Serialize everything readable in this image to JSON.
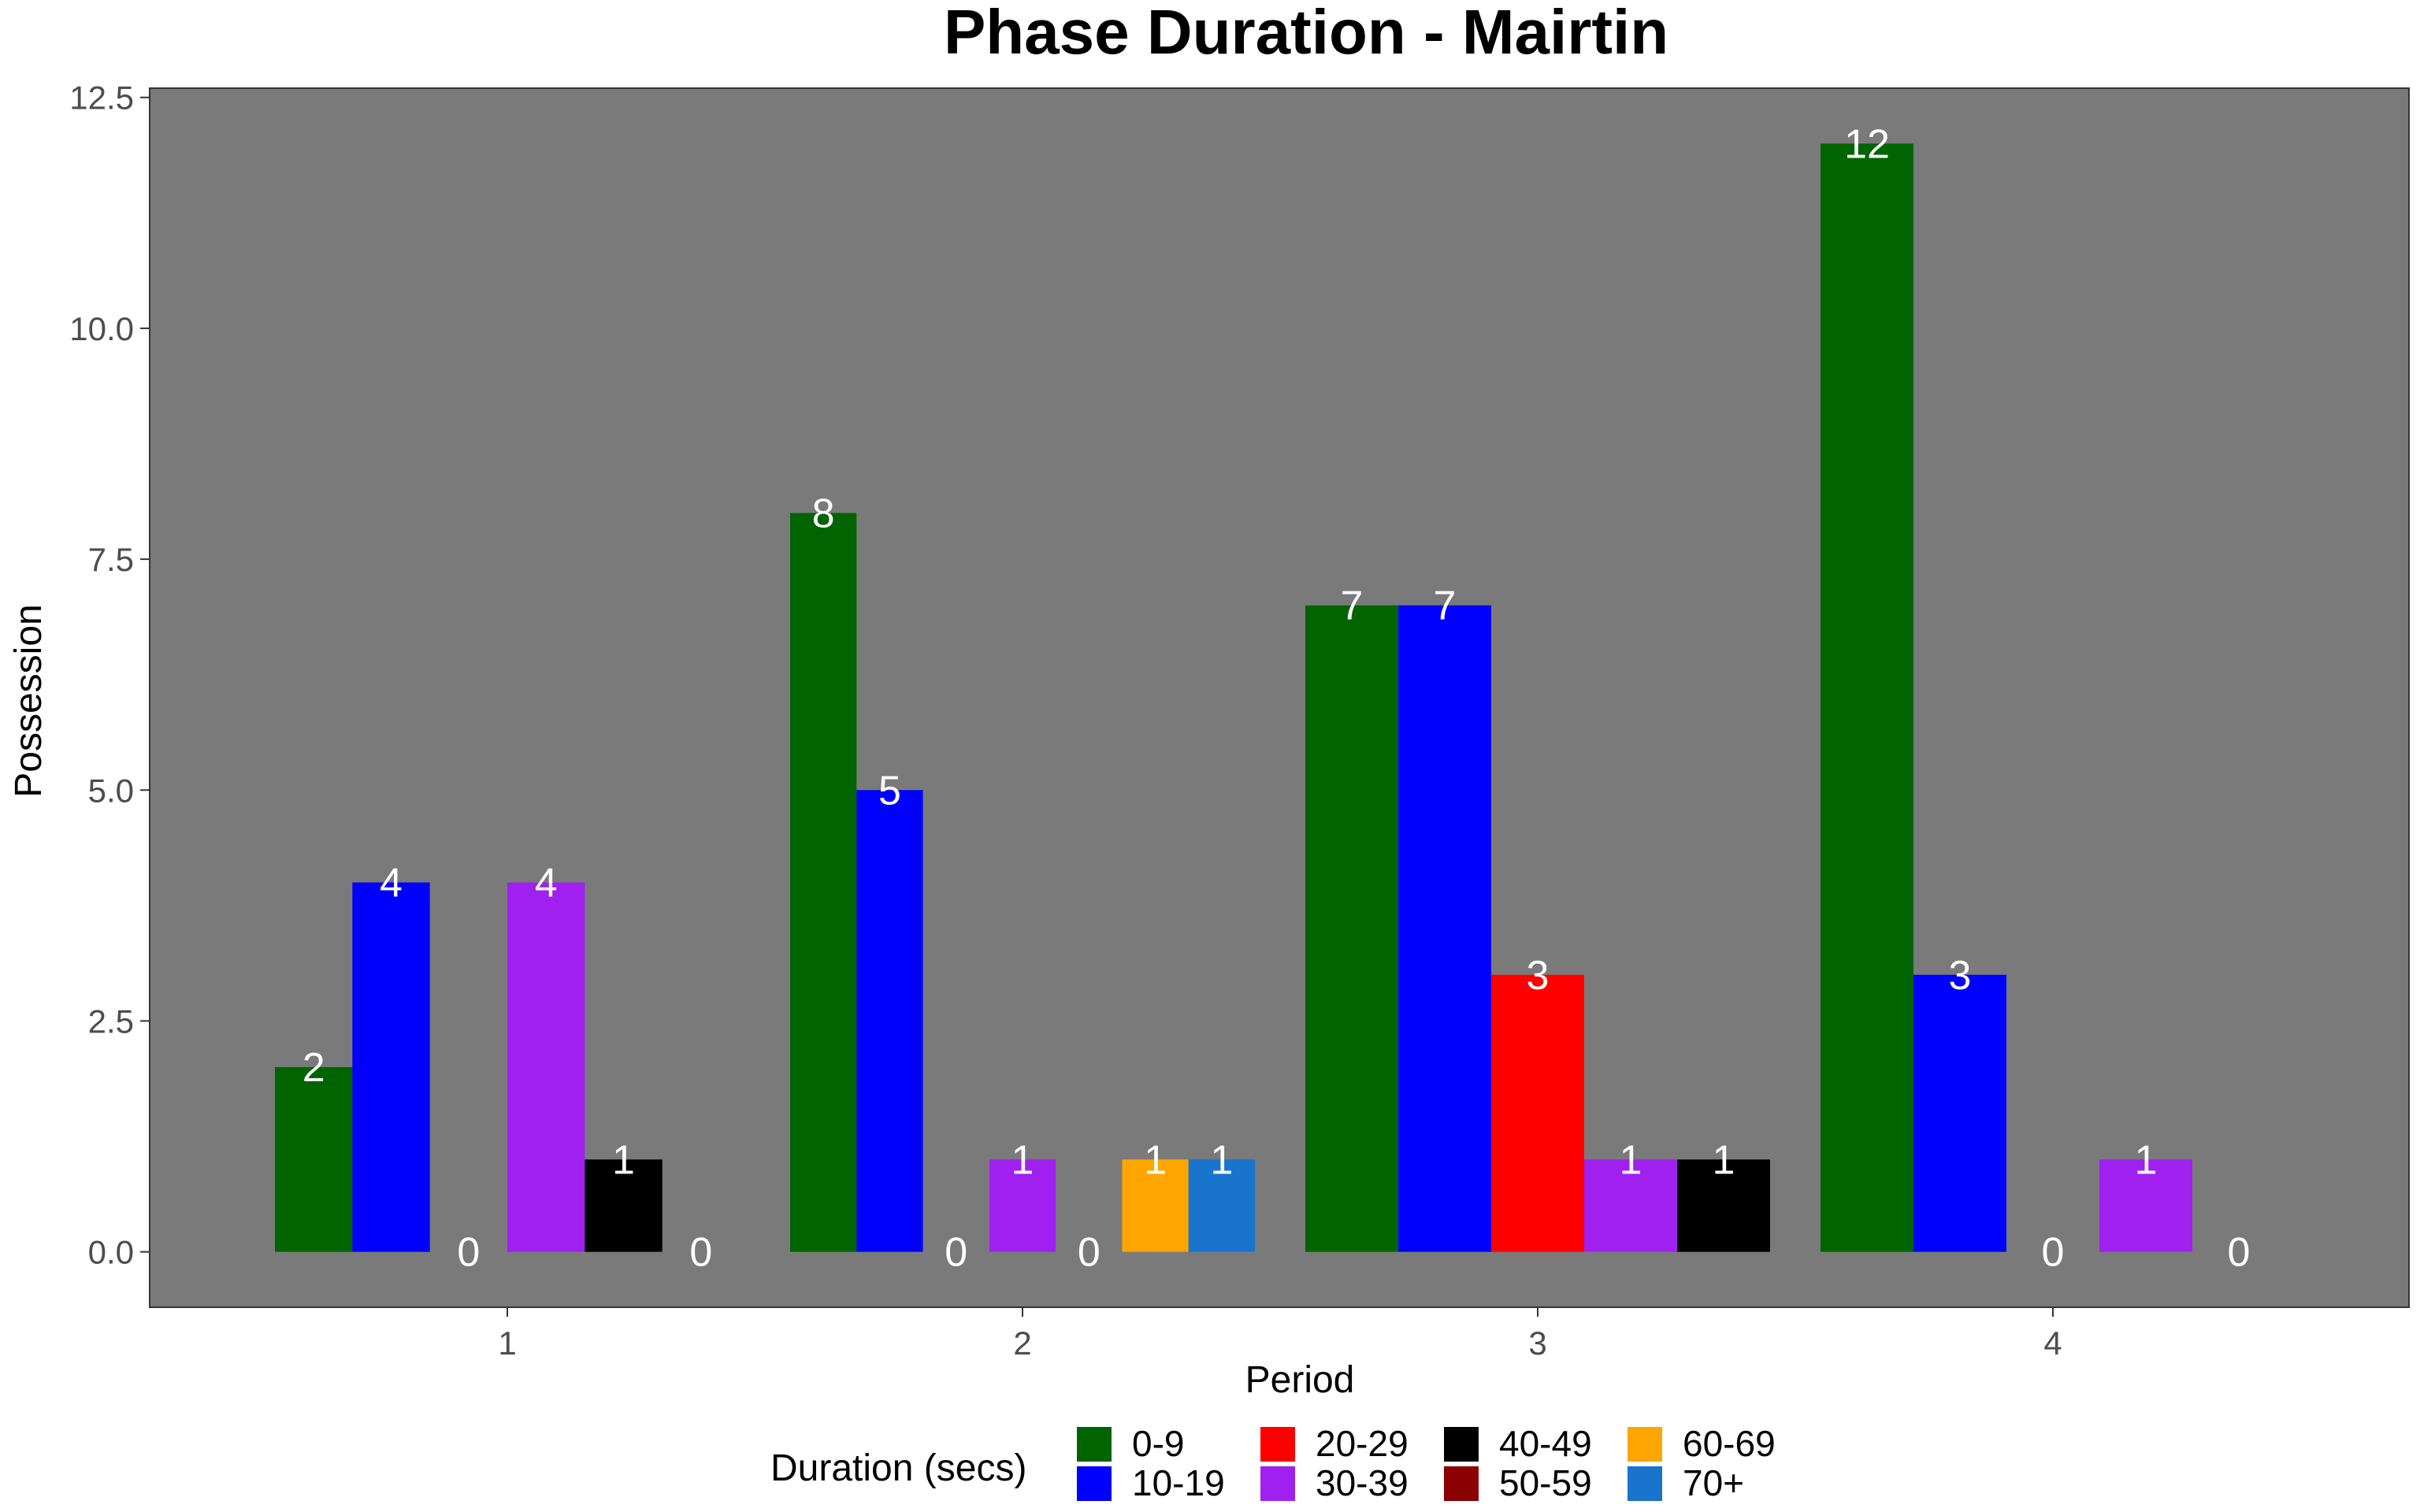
{
  "chart_data": {
    "type": "bar",
    "title": "Phase Duration - Mairtin",
    "xlabel": "Period",
    "ylabel": "Possession",
    "ylim": [
      -0.6,
      12.6
    ],
    "yticks": [
      "0.0",
      "2.5",
      "5.0",
      "7.5",
      "10.0",
      "12.5"
    ],
    "ytick_values": [
      0,
      2.5,
      5,
      7.5,
      10,
      12.5
    ],
    "grid": false,
    "panel_background": "#7a7a7a",
    "legend_position": "bottom",
    "legend_title": "Duration (secs)",
    "categories": [
      "1",
      "2",
      "3",
      "4"
    ],
    "groups": [
      {
        "period": "1",
        "bars": [
          {
            "series": "0-9",
            "value": 2,
            "label": "2"
          },
          {
            "series": "10-19",
            "value": 4,
            "label": "4"
          },
          {
            "series": "20-29",
            "value": 0,
            "label": "0"
          },
          {
            "series": "30-39",
            "value": 4,
            "label": "4"
          },
          {
            "series": "40-49",
            "value": 1,
            "label": "1"
          },
          {
            "series": "50-59",
            "value": 0,
            "label": "0"
          }
        ]
      },
      {
        "period": "2",
        "bars": [
          {
            "series": "0-9",
            "value": 8,
            "label": "8"
          },
          {
            "series": "10-19",
            "value": 5,
            "label": "5"
          },
          {
            "series": "20-29",
            "value": 0,
            "label": "0"
          },
          {
            "series": "30-39",
            "value": 1,
            "label": "1"
          },
          {
            "series": "50-59",
            "value": 0,
            "label": "0"
          },
          {
            "series": "60-69",
            "value": 1,
            "label": "1"
          },
          {
            "series": "70+",
            "value": 1,
            "label": "1"
          }
        ]
      },
      {
        "period": "3",
        "bars": [
          {
            "series": "0-9",
            "value": 7,
            "label": "7"
          },
          {
            "series": "10-19",
            "value": 7,
            "label": "7"
          },
          {
            "series": "20-29",
            "value": 3,
            "label": "3"
          },
          {
            "series": "30-39",
            "value": 1,
            "label": "1"
          },
          {
            "series": "40-49",
            "value": 1,
            "label": "1"
          }
        ]
      },
      {
        "period": "4",
        "bars": [
          {
            "series": "0-9",
            "value": 12,
            "label": "12"
          },
          {
            "series": "10-19",
            "value": 3,
            "label": "3"
          },
          {
            "series": "20-29",
            "value": 0,
            "label": "0"
          },
          {
            "series": "30-39",
            "value": 1,
            "label": "1"
          },
          {
            "series": "40-49",
            "value": 0,
            "label": "0"
          }
        ]
      }
    ],
    "series": [
      {
        "name": "0-9",
        "color": "#006400"
      },
      {
        "name": "10-19",
        "color": "#0000ff"
      },
      {
        "name": "20-29",
        "color": "#ff0000"
      },
      {
        "name": "30-39",
        "color": "#a020f0"
      },
      {
        "name": "40-49",
        "color": "#000000"
      },
      {
        "name": "50-59",
        "color": "#8b0000"
      },
      {
        "name": "60-69",
        "color": "#ffa500"
      },
      {
        "name": "70+",
        "color": "#1874cd"
      }
    ]
  }
}
